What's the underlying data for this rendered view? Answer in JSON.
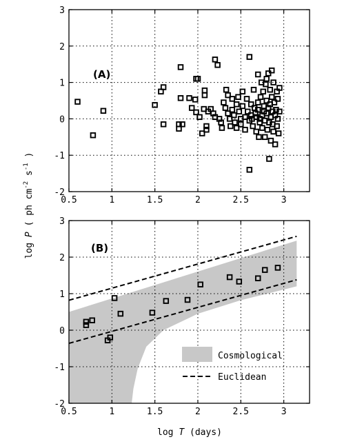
{
  "chart_data": [
    {
      "type": "scatter",
      "panel_label": "(A)",
      "xlim": [
        0.5,
        3.3
      ],
      "ylim": [
        -2,
        3
      ],
      "xticks": [
        0.5,
        1,
        1.5,
        2,
        2.5,
        3
      ],
      "yticks": [
        -2,
        -1,
        0,
        1,
        2,
        3
      ],
      "xtick_labels": [
        "0.5",
        "1",
        "1.5",
        "2",
        "2.5",
        "3"
      ],
      "ytick_labels": [
        "-2",
        "-1",
        "0",
        "1",
        "2",
        "3"
      ],
      "grid": true,
      "series": [
        {
          "marker": "open-square",
          "points": [
            [
              0.6,
              0.47
            ],
            [
              0.78,
              -0.45
            ],
            [
              0.9,
              0.22
            ],
            [
              1.5,
              0.38
            ],
            [
              1.57,
              0.75
            ],
            [
              1.6,
              0.87
            ],
            [
              1.6,
              -0.15
            ],
            [
              1.78,
              -0.15
            ],
            [
              1.78,
              -0.27
            ],
            [
              1.8,
              1.42
            ],
            [
              1.8,
              0.57
            ],
            [
              1.82,
              -0.15
            ],
            [
              1.9,
              0.57
            ],
            [
              1.93,
              0.3
            ],
            [
              1.97,
              0.53
            ],
            [
              1.98,
              0.18
            ],
            [
              1.98,
              1.1
            ],
            [
              2.0,
              1.1
            ],
            [
              2.02,
              0.05
            ],
            [
              2.05,
              -0.4
            ],
            [
              2.07,
              0.27
            ],
            [
              2.08,
              0.78
            ],
            [
              2.08,
              0.65
            ],
            [
              2.1,
              -0.3
            ],
            [
              2.1,
              -0.2
            ],
            [
              2.12,
              0.2
            ],
            [
              2.15,
              0.27
            ],
            [
              2.18,
              0.15
            ],
            [
              2.2,
              0.05
            ],
            [
              2.2,
              1.63
            ],
            [
              2.23,
              1.48
            ],
            [
              2.25,
              0.0
            ],
            [
              2.27,
              -0.1
            ],
            [
              2.28,
              -0.25
            ],
            [
              2.3,
              0.45
            ],
            [
              2.32,
              0.3
            ],
            [
              2.33,
              0.8
            ],
            [
              2.35,
              0.65
            ],
            [
              2.35,
              0.15
            ],
            [
              2.37,
              0.0
            ],
            [
              2.38,
              -0.2
            ],
            [
              2.4,
              0.55
            ],
            [
              2.4,
              0.25
            ],
            [
              2.42,
              0.1
            ],
            [
              2.43,
              -0.1
            ],
            [
              2.45,
              0.4
            ],
            [
              2.45,
              -0.25
            ],
            [
              2.47,
              0.6
            ],
            [
              2.48,
              0.2
            ],
            [
              2.5,
              0.0
            ],
            [
              2.5,
              -0.15
            ],
            [
              2.52,
              0.35
            ],
            [
              2.52,
              0.75
            ],
            [
              2.55,
              0.05
            ],
            [
              2.55,
              -0.3
            ],
            [
              2.57,
              0.55
            ],
            [
              2.58,
              0.2
            ],
            [
              2.6,
              1.7
            ],
            [
              2.6,
              -0.05
            ],
            [
              2.6,
              -1.4
            ],
            [
              2.62,
              0.4
            ],
            [
              2.62,
              0.1
            ],
            [
              2.63,
              0.0
            ],
            [
              2.64,
              -0.2
            ],
            [
              2.65,
              0.8
            ],
            [
              2.66,
              0.3
            ],
            [
              2.67,
              0.15
            ],
            [
              2.68,
              0.05
            ],
            [
              2.68,
              -0.35
            ],
            [
              2.7,
              1.22
            ],
            [
              2.7,
              0.45
            ],
            [
              2.7,
              0.25
            ],
            [
              2.71,
              -0.5
            ],
            [
              2.72,
              0.0
            ],
            [
              2.72,
              -0.1
            ],
            [
              2.73,
              0.6
            ],
            [
              2.74,
              1.0
            ],
            [
              2.75,
              0.1
            ],
            [
              2.75,
              -0.25
            ],
            [
              2.76,
              0.75
            ],
            [
              2.77,
              0.35
            ],
            [
              2.77,
              0.2
            ],
            [
              2.78,
              -0.05
            ],
            [
              2.78,
              -0.5
            ],
            [
              2.79,
              0.95
            ],
            [
              2.8,
              1.1
            ],
            [
              2.8,
              0.5
            ],
            [
              2.8,
              0.15
            ],
            [
              2.81,
              -0.3
            ],
            [
              2.82,
              0.3
            ],
            [
              2.82,
              1.25
            ],
            [
              2.83,
              -0.1
            ],
            [
              2.83,
              -1.1
            ],
            [
              2.84,
              0.8
            ],
            [
              2.84,
              0.4
            ],
            [
              2.85,
              0.05
            ],
            [
              2.85,
              -0.6
            ],
            [
              2.86,
              1.33
            ],
            [
              2.86,
              0.6
            ],
            [
              2.87,
              0.2
            ],
            [
              2.87,
              -0.15
            ],
            [
              2.88,
              1.0
            ],
            [
              2.88,
              -0.35
            ],
            [
              2.89,
              0.45
            ],
            [
              2.9,
              0.1
            ],
            [
              2.9,
              -0.7
            ],
            [
              2.91,
              0.25
            ],
            [
              2.92,
              0.75
            ],
            [
              2.92,
              -0.2
            ],
            [
              2.93,
              0.0
            ],
            [
              2.93,
              0.55
            ],
            [
              2.94,
              -0.4
            ],
            [
              2.95,
              0.2
            ],
            [
              2.95,
              0.85
            ]
          ]
        }
      ]
    },
    {
      "type": "scatter",
      "panel_label": "(B)",
      "xlim": [
        0.5,
        3.3
      ],
      "ylim": [
        -2,
        3
      ],
      "xticks": [
        0.5,
        1,
        1.5,
        2,
        2.5,
        3
      ],
      "yticks": [
        -2,
        -1,
        0,
        1,
        2,
        3
      ],
      "xtick_labels": [
        "0.5",
        "1",
        "1.5",
        "2",
        "2.5",
        "3"
      ],
      "ytick_labels": [
        "-2",
        "-1",
        "0",
        "1",
        "2",
        "3"
      ],
      "grid": true,
      "xlabel_parts": [
        "log ",
        "T",
        " (days)"
      ],
      "legend_placement": "bottom-right",
      "cosmological_band": {
        "upper": [
          [
            0.5,
            0.5
          ],
          [
            3.15,
            2.45
          ]
        ],
        "lower": [
          [
            3.15,
            1.2
          ],
          [
            2.5,
            0.82
          ],
          [
            2.0,
            0.45
          ],
          [
            1.6,
            0.0
          ],
          [
            1.4,
            -0.45
          ],
          [
            1.3,
            -1.05
          ],
          [
            1.25,
            -1.6
          ],
          [
            1.23,
            -2.0
          ]
        ],
        "legend_label": "Cosmological",
        "color": "#c8c8c8"
      },
      "euclidean_lines": {
        "legend_label": "Euclidean",
        "lines": [
          [
            [
              0.5,
              0.82
            ],
            [
              3.15,
              2.57
            ]
          ],
          [
            [
              0.5,
              -0.36
            ],
            [
              3.15,
              1.38
            ]
          ]
        ]
      },
      "series": [
        {
          "marker": "open-square",
          "points": [
            [
              0.7,
              0.14
            ],
            [
              0.7,
              0.23
            ],
            [
              0.77,
              0.27
            ],
            [
              0.95,
              -0.28
            ],
            [
              0.98,
              -0.2
            ],
            [
              1.03,
              0.88
            ],
            [
              1.1,
              0.45
            ],
            [
              1.47,
              0.48
            ],
            [
              1.63,
              0.8
            ],
            [
              1.88,
              0.83
            ],
            [
              2.03,
              1.25
            ],
            [
              2.37,
              1.45
            ],
            [
              2.48,
              1.33
            ],
            [
              2.7,
              1.42
            ],
            [
              2.78,
              1.65
            ],
            [
              2.93,
              1.71
            ]
          ]
        }
      ]
    }
  ],
  "shared_ylabel_parts": [
    "log ",
    "P",
    " ( ph cm",
    "-2",
    " s",
    "-1",
    " )"
  ]
}
